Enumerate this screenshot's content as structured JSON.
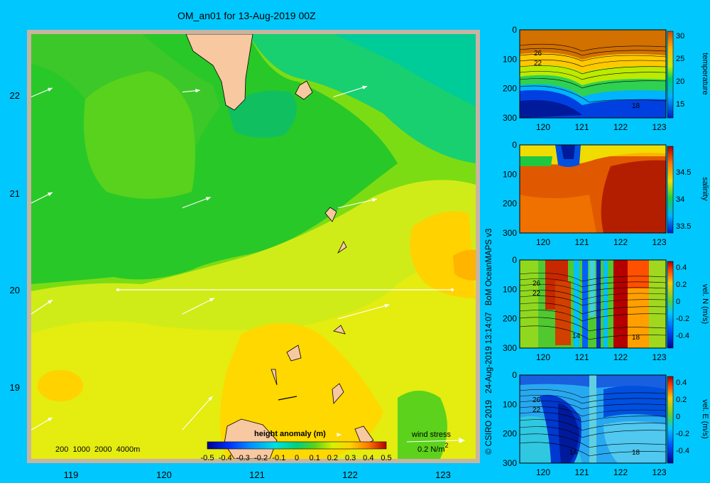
{
  "title": "OM_an01 for 13-Aug-2019 00Z",
  "map": {
    "x_ticks": [
      "119",
      "120",
      "121",
      "122",
      "123"
    ],
    "y_ticks": [
      "22",
      "21",
      "20",
      "19"
    ],
    "depth_legend": "200  1000  2000  4000m",
    "colorbar_title": "height anomaly (m)",
    "colorbar_ticks": [
      "-0.5",
      "-0.4",
      "-0.3",
      "-0.2",
      "-0.1",
      "0",
      "0.1",
      "0.2",
      "0.3",
      "0.4",
      "0.5"
    ],
    "wind_label": "wind stress",
    "wind_units": "0.2 N/m",
    "wind_units_sup": "2"
  },
  "panels": [
    {
      "label": "temperature",
      "y_ticks": [
        "0",
        "100",
        "200",
        "300"
      ],
      "x_ticks": [
        "120",
        "121",
        "122",
        "123"
      ],
      "cb_ticks": [
        "30",
        "25",
        "20",
        "15"
      ],
      "contours": [
        "26",
        "22",
        "18"
      ]
    },
    {
      "label": "salinity",
      "y_ticks": [
        "0",
        "100",
        "200",
        "300"
      ],
      "x_ticks": [
        "120",
        "121",
        "122",
        "123"
      ],
      "cb_ticks": [
        "34.5",
        "34",
        "33.5"
      ],
      "contours": []
    },
    {
      "label": "vel. N (m/s)",
      "y_ticks": [
        "0",
        "100",
        "200",
        "300"
      ],
      "x_ticks": [
        "120",
        "121",
        "122",
        "123"
      ],
      "cb_ticks": [
        "0.4",
        "0.2",
        "0",
        "-0.2",
        "-0.4"
      ],
      "contours": [
        "26",
        "22",
        "14",
        "18"
      ]
    },
    {
      "label": "vel. E (m/s)",
      "y_ticks": [
        "0",
        "100",
        "200",
        "300"
      ],
      "x_ticks": [
        "120",
        "121",
        "122",
        "123"
      ],
      "cb_ticks": [
        "0.4",
        "0.2",
        "0",
        "-0.2",
        "-0.4"
      ],
      "contours": [
        "26",
        "22",
        "14",
        "18"
      ]
    }
  ],
  "credit": {
    "copyright": "© CSIRO 2019",
    "timestamp": "24-Aug-2019 13:14:07",
    "source": "BoM OceanMAPS v3"
  },
  "chart_data": [
    {
      "type": "heatmap",
      "title": "OM_an01 for 13-Aug-2019 00Z",
      "variable": "height anomaly (m)",
      "xlim": [
        118.5,
        123.5
      ],
      "ylim": [
        18.25,
        22.65
      ],
      "x_ticks": [
        119,
        120,
        121,
        122,
        123
      ],
      "y_ticks": [
        19,
        20,
        21,
        22
      ],
      "color_range": [
        -0.5,
        0.5
      ],
      "contour_levels": [
        -0.5,
        -0.4,
        -0.3,
        -0.2,
        -0.1,
        0,
        0.1,
        0.2,
        0.3,
        0.4,
        0.5
      ],
      "section_line": {
        "lat": 20.0,
        "lon_start": 119.5,
        "lon_end": 123.05
      },
      "wind_stress_reference": "0.2 N/m2",
      "wind_vectors": [
        {
          "lon": 118.5,
          "lat": 22.0,
          "u": 0.6,
          "v": 0.25
        },
        {
          "lon": 120.2,
          "lat": 22.05,
          "u": 0.5,
          "v": 0.05
        },
        {
          "lon": 121.9,
          "lat": 22.0,
          "u": 0.95,
          "v": 0.3
        },
        {
          "lon": 118.5,
          "lat": 20.9,
          "u": 0.6,
          "v": 0.3
        },
        {
          "lon": 120.2,
          "lat": 20.85,
          "u": 0.8,
          "v": 0.3
        },
        {
          "lon": 121.95,
          "lat": 20.85,
          "u": 1.1,
          "v": 0.25
        },
        {
          "lon": 118.5,
          "lat": 19.75,
          "u": 0.6,
          "v": 0.4
        },
        {
          "lon": 120.2,
          "lat": 19.75,
          "u": 0.9,
          "v": 0.45
        },
        {
          "lon": 121.95,
          "lat": 19.7,
          "u": 1.45,
          "v": 0.4
        },
        {
          "lon": 118.5,
          "lat": 18.55,
          "u": 0.6,
          "v": 0.35
        },
        {
          "lon": 120.2,
          "lat": 18.55,
          "u": 0.85,
          "v": 0.95
        },
        {
          "lon": 121.95,
          "lat": 18.5,
          "u": 0.1,
          "v": 0.0
        }
      ]
    },
    {
      "type": "heatmap",
      "variable": "temperature",
      "x_range": [
        119.5,
        123.2
      ],
      "depth_range": [
        0,
        300
      ],
      "color_range": [
        14,
        31
      ],
      "contour_labels": [
        26,
        22,
        18
      ]
    },
    {
      "type": "heatmap",
      "variable": "salinity",
      "x_range": [
        119.5,
        123.2
      ],
      "depth_range": [
        0,
        300
      ],
      "color_range": [
        33.4,
        34.9
      ]
    },
    {
      "type": "heatmap",
      "variable": "vel. N (m/s)",
      "x_range": [
        119.5,
        123.2
      ],
      "depth_range": [
        0,
        300
      ],
      "color_range": [
        -0.45,
        0.45
      ],
      "contour_labels": [
        26,
        22,
        14,
        18
      ]
    },
    {
      "type": "heatmap",
      "variable": "vel. E (m/s)",
      "x_range": [
        119.5,
        123.2
      ],
      "depth_range": [
        0,
        300
      ],
      "color_range": [
        -0.45,
        0.45
      ],
      "contour_labels": [
        26,
        22,
        14,
        18
      ]
    }
  ]
}
